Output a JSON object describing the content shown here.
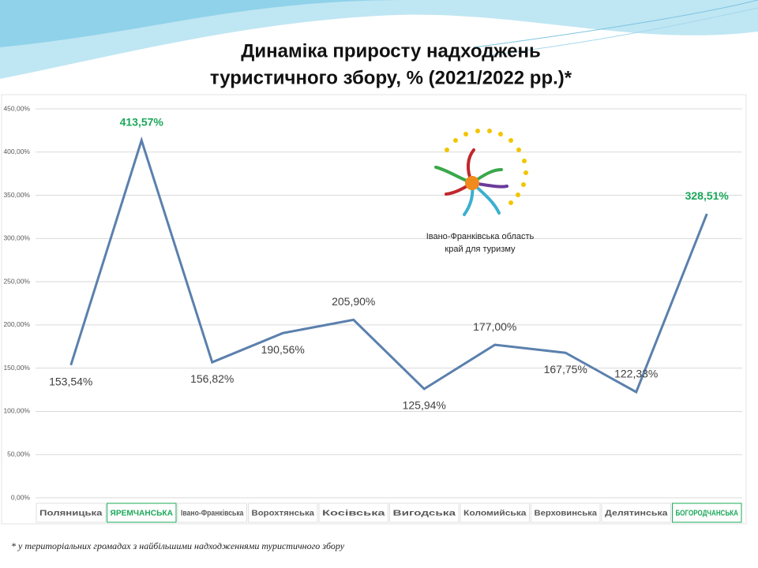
{
  "chart_data": {
    "type": "line",
    "title": "Динаміка приросту надходжень",
    "subtitle": "туристичного збору, % (2021/2022 рр.)*",
    "categories": [
      "Поляницька",
      "ЯРЕМЧАНСЬКА",
      "Івано-Франківська",
      "Ворохтянська",
      "Косівська",
      "Вигодська",
      "Коломийська",
      "Верховинська",
      "Делятинська",
      "БОГОРОДЧАНСЬКА"
    ],
    "values": [
      153.54,
      413.57,
      156.82,
      190.56,
      205.9,
      125.94,
      177.0,
      167.75,
      122.33,
      328.51
    ],
    "value_labels": [
      "153,54%",
      "413,57%",
      "156,82%",
      "190,56%",
      "205,90%",
      "125,94%",
      "177,00%",
      "167,75%",
      "122,33%",
      "328,51%"
    ],
    "color": "#5b80ad",
    "label_colors": [
      "#404040",
      "#1aa85a",
      "#404040",
      "#404040",
      "#404040",
      "#404040",
      "#404040",
      "#404040",
      "#404040",
      "#1aa85a"
    ],
    "ylim": [
      0,
      450
    ],
    "yticks": [
      {
        "value": 0,
        "label": "0,00%"
      },
      {
        "value": 50,
        "label": "50,00%"
      },
      {
        "value": 100,
        "label": "100,00%"
      },
      {
        "value": 150,
        "label": "150,00%"
      },
      {
        "value": 200,
        "label": "200,00%"
      },
      {
        "value": 250,
        "label": "250,00%"
      },
      {
        "value": 300,
        "label": "300,00%"
      },
      {
        "value": 350,
        "label": "350,00%"
      },
      {
        "value": 400,
        "label": "400,00%"
      },
      {
        "value": 450,
        "label": "450,00%"
      }
    ],
    "grid": true,
    "logo": {
      "line1": "Івано-Франківська область",
      "line2": "край для туризму"
    },
    "footnote": "* у територіальних громадах з найбільшими надходженнями туристичного збору"
  }
}
